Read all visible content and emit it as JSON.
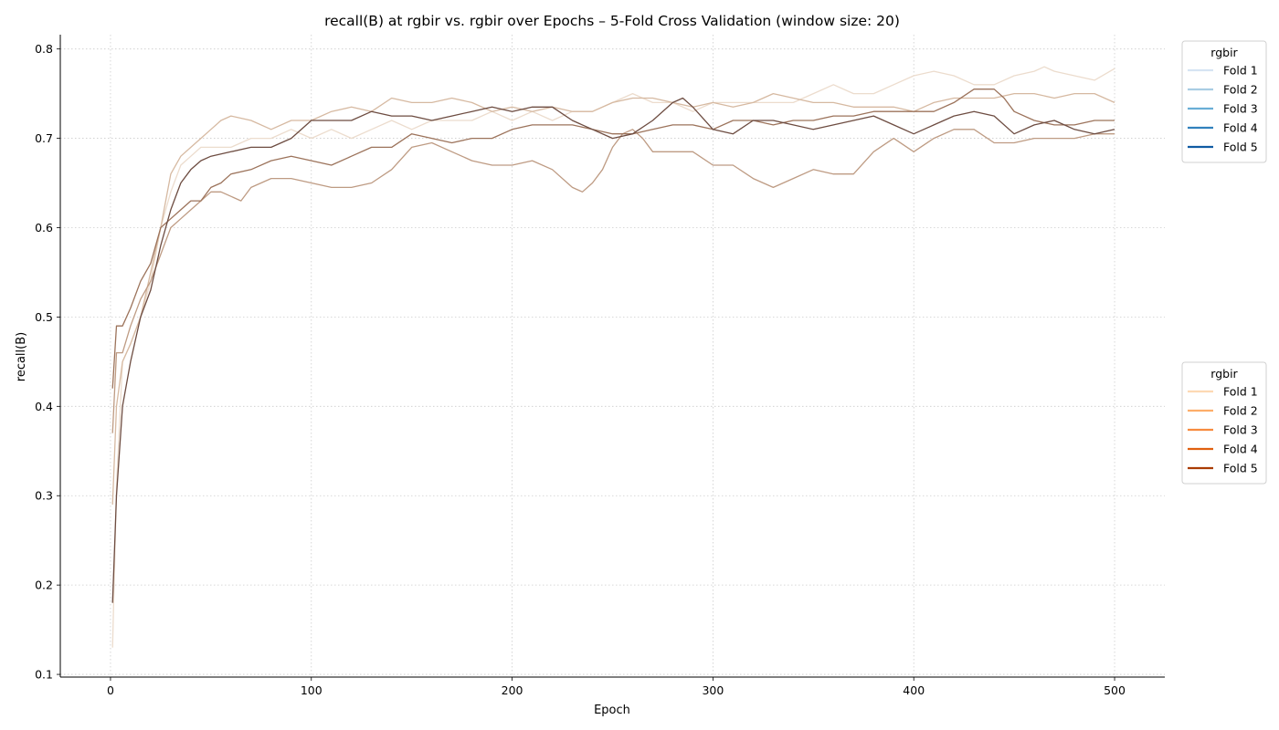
{
  "chart_data": {
    "type": "line",
    "title": "recall(B) at rgbir vs. rgbir over Epochs – 5-Fold Cross Validation (window size: 20)",
    "xlabel": "Epoch",
    "ylabel": "recall(B)",
    "xlim": [
      -25,
      525
    ],
    "ylim": [
      0.097,
      0.816
    ],
    "xticks": [
      0,
      100,
      200,
      300,
      400,
      500
    ],
    "yticks": [
      0.1,
      0.2,
      0.3,
      0.4,
      0.5,
      0.6,
      0.7,
      0.8
    ],
    "grid": true,
    "legends": [
      {
        "title": "rgbir",
        "placement": "upper-right",
        "entries": [
          {
            "label": "Fold 1",
            "color": "#d6e4f3"
          },
          {
            "label": "Fold 2",
            "color": "#a9cde3"
          },
          {
            "label": "Fold 3",
            "color": "#6aaed6"
          },
          {
            "label": "Fold 4",
            "color": "#3181bd"
          },
          {
            "label": "Fold 5",
            "color": "#105ba3"
          }
        ]
      },
      {
        "title": "rgbir",
        "placement": "center-right",
        "entries": [
          {
            "label": "Fold 1",
            "color": "#fdd9b4"
          },
          {
            "label": "Fold 2",
            "color": "#fdae6a"
          },
          {
            "label": "Fold 3",
            "color": "#f78b3e"
          },
          {
            "label": "Fold 4",
            "color": "#e0600f"
          },
          {
            "label": "Fold 5",
            "color": "#a93c03"
          }
        ]
      }
    ],
    "series": [
      {
        "color": "#ecdccd",
        "points": [
          [
            1,
            0.13
          ],
          [
            3,
            0.31
          ],
          [
            6,
            0.45
          ],
          [
            10,
            0.47
          ],
          [
            15,
            0.5
          ],
          [
            20,
            0.54
          ],
          [
            25,
            0.6
          ],
          [
            30,
            0.64
          ],
          [
            35,
            0.67
          ],
          [
            40,
            0.68
          ],
          [
            45,
            0.69
          ],
          [
            50,
            0.69
          ],
          [
            60,
            0.69
          ],
          [
            70,
            0.7
          ],
          [
            80,
            0.7
          ],
          [
            90,
            0.71
          ],
          [
            100,
            0.7
          ],
          [
            110,
            0.71
          ],
          [
            120,
            0.7
          ],
          [
            130,
            0.71
          ],
          [
            140,
            0.72
          ],
          [
            150,
            0.71
          ],
          [
            160,
            0.72
          ],
          [
            170,
            0.72
          ],
          [
            180,
            0.72
          ],
          [
            190,
            0.73
          ],
          [
            200,
            0.72
          ],
          [
            210,
            0.73
          ],
          [
            220,
            0.72
          ],
          [
            230,
            0.73
          ],
          [
            240,
            0.73
          ],
          [
            250,
            0.74
          ],
          [
            260,
            0.75
          ],
          [
            270,
            0.74
          ],
          [
            280,
            0.74
          ],
          [
            290,
            0.73
          ],
          [
            300,
            0.74
          ],
          [
            310,
            0.74
          ],
          [
            320,
            0.74
          ],
          [
            330,
            0.74
          ],
          [
            340,
            0.74
          ],
          [
            350,
            0.75
          ],
          [
            360,
            0.76
          ],
          [
            370,
            0.75
          ],
          [
            380,
            0.75
          ],
          [
            390,
            0.76
          ],
          [
            400,
            0.77
          ],
          [
            410,
            0.775
          ],
          [
            420,
            0.77
          ],
          [
            430,
            0.76
          ],
          [
            440,
            0.76
          ],
          [
            450,
            0.77
          ],
          [
            460,
            0.775
          ],
          [
            465,
            0.78
          ],
          [
            470,
            0.775
          ],
          [
            480,
            0.77
          ],
          [
            490,
            0.765
          ],
          [
            500,
            0.778
          ]
        ]
      },
      {
        "color": "#d6b9a1",
        "points": [
          [
            1,
            0.29
          ],
          [
            3,
            0.4
          ],
          [
            6,
            0.45
          ],
          [
            10,
            0.47
          ],
          [
            15,
            0.5
          ],
          [
            20,
            0.55
          ],
          [
            25,
            0.6
          ],
          [
            30,
            0.66
          ],
          [
            35,
            0.68
          ],
          [
            40,
            0.69
          ],
          [
            45,
            0.7
          ],
          [
            50,
            0.71
          ],
          [
            55,
            0.72
          ],
          [
            60,
            0.725
          ],
          [
            70,
            0.72
          ],
          [
            80,
            0.71
          ],
          [
            90,
            0.72
          ],
          [
            100,
            0.72
          ],
          [
            110,
            0.73
          ],
          [
            120,
            0.735
          ],
          [
            130,
            0.73
          ],
          [
            140,
            0.745
          ],
          [
            150,
            0.74
          ],
          [
            160,
            0.74
          ],
          [
            170,
            0.745
          ],
          [
            180,
            0.74
          ],
          [
            190,
            0.73
          ],
          [
            200,
            0.735
          ],
          [
            210,
            0.73
          ],
          [
            220,
            0.735
          ],
          [
            230,
            0.73
          ],
          [
            240,
            0.73
          ],
          [
            250,
            0.74
          ],
          [
            260,
            0.745
          ],
          [
            270,
            0.745
          ],
          [
            280,
            0.74
          ],
          [
            290,
            0.735
          ],
          [
            300,
            0.74
          ],
          [
            310,
            0.735
          ],
          [
            320,
            0.74
          ],
          [
            330,
            0.75
          ],
          [
            340,
            0.745
          ],
          [
            350,
            0.74
          ],
          [
            360,
            0.74
          ],
          [
            370,
            0.735
          ],
          [
            380,
            0.735
          ],
          [
            390,
            0.735
          ],
          [
            400,
            0.73
          ],
          [
            410,
            0.74
          ],
          [
            420,
            0.745
          ],
          [
            430,
            0.745
          ],
          [
            440,
            0.745
          ],
          [
            450,
            0.75
          ],
          [
            460,
            0.75
          ],
          [
            470,
            0.745
          ],
          [
            480,
            0.75
          ],
          [
            490,
            0.75
          ],
          [
            500,
            0.74
          ]
        ]
      },
      {
        "color": "#be9b83",
        "points": [
          [
            1,
            0.37
          ],
          [
            3,
            0.46
          ],
          [
            6,
            0.46
          ],
          [
            10,
            0.49
          ],
          [
            15,
            0.52
          ],
          [
            20,
            0.54
          ],
          [
            25,
            0.57
          ],
          [
            30,
            0.6
          ],
          [
            35,
            0.61
          ],
          [
            40,
            0.62
          ],
          [
            45,
            0.63
          ],
          [
            50,
            0.64
          ],
          [
            55,
            0.64
          ],
          [
            60,
            0.635
          ],
          [
            65,
            0.63
          ],
          [
            70,
            0.645
          ],
          [
            80,
            0.655
          ],
          [
            90,
            0.655
          ],
          [
            100,
            0.65
          ],
          [
            110,
            0.645
          ],
          [
            120,
            0.645
          ],
          [
            130,
            0.65
          ],
          [
            140,
            0.665
          ],
          [
            150,
            0.69
          ],
          [
            160,
            0.695
          ],
          [
            170,
            0.685
          ],
          [
            180,
            0.675
          ],
          [
            190,
            0.67
          ],
          [
            200,
            0.67
          ],
          [
            210,
            0.675
          ],
          [
            220,
            0.665
          ],
          [
            230,
            0.645
          ],
          [
            235,
            0.64
          ],
          [
            240,
            0.65
          ],
          [
            245,
            0.665
          ],
          [
            250,
            0.69
          ],
          [
            255,
            0.705
          ],
          [
            260,
            0.71
          ],
          [
            265,
            0.7
          ],
          [
            270,
            0.685
          ],
          [
            280,
            0.685
          ],
          [
            290,
            0.685
          ],
          [
            300,
            0.67
          ],
          [
            310,
            0.67
          ],
          [
            320,
            0.655
          ],
          [
            330,
            0.645
          ],
          [
            340,
            0.655
          ],
          [
            350,
            0.665
          ],
          [
            360,
            0.66
          ],
          [
            370,
            0.66
          ],
          [
            380,
            0.685
          ],
          [
            390,
            0.7
          ],
          [
            400,
            0.685
          ],
          [
            410,
            0.7
          ],
          [
            420,
            0.71
          ],
          [
            430,
            0.71
          ],
          [
            440,
            0.695
          ],
          [
            450,
            0.695
          ],
          [
            460,
            0.7
          ],
          [
            470,
            0.7
          ],
          [
            480,
            0.7
          ],
          [
            490,
            0.705
          ],
          [
            500,
            0.705
          ]
        ]
      },
      {
        "color": "#9c735b",
        "points": [
          [
            1,
            0.42
          ],
          [
            3,
            0.49
          ],
          [
            6,
            0.49
          ],
          [
            10,
            0.51
          ],
          [
            15,
            0.54
          ],
          [
            20,
            0.56
          ],
          [
            25,
            0.6
          ],
          [
            30,
            0.61
          ],
          [
            35,
            0.62
          ],
          [
            40,
            0.63
          ],
          [
            45,
            0.63
          ],
          [
            50,
            0.645
          ],
          [
            55,
            0.65
          ],
          [
            60,
            0.66
          ],
          [
            70,
            0.665
          ],
          [
            80,
            0.675
          ],
          [
            90,
            0.68
          ],
          [
            100,
            0.675
          ],
          [
            110,
            0.67
          ],
          [
            120,
            0.68
          ],
          [
            130,
            0.69
          ],
          [
            140,
            0.69
          ],
          [
            150,
            0.705
          ],
          [
            160,
            0.7
          ],
          [
            170,
            0.695
          ],
          [
            180,
            0.7
          ],
          [
            190,
            0.7
          ],
          [
            200,
            0.71
          ],
          [
            210,
            0.715
          ],
          [
            220,
            0.715
          ],
          [
            230,
            0.715
          ],
          [
            240,
            0.71
          ],
          [
            250,
            0.705
          ],
          [
            260,
            0.705
          ],
          [
            270,
            0.71
          ],
          [
            280,
            0.715
          ],
          [
            290,
            0.715
          ],
          [
            300,
            0.71
          ],
          [
            310,
            0.72
          ],
          [
            320,
            0.72
          ],
          [
            330,
            0.715
          ],
          [
            340,
            0.72
          ],
          [
            350,
            0.72
          ],
          [
            360,
            0.725
          ],
          [
            370,
            0.725
          ],
          [
            380,
            0.73
          ],
          [
            390,
            0.73
          ],
          [
            400,
            0.73
          ],
          [
            410,
            0.73
          ],
          [
            420,
            0.74
          ],
          [
            430,
            0.755
          ],
          [
            440,
            0.755
          ],
          [
            445,
            0.745
          ],
          [
            450,
            0.73
          ],
          [
            460,
            0.72
          ],
          [
            470,
            0.715
          ],
          [
            480,
            0.715
          ],
          [
            490,
            0.72
          ],
          [
            500,
            0.72
          ]
        ]
      },
      {
        "color": "#6d4c41",
        "points": [
          [
            1,
            0.18
          ],
          [
            3,
            0.3
          ],
          [
            6,
            0.4
          ],
          [
            10,
            0.45
          ],
          [
            15,
            0.5
          ],
          [
            20,
            0.53
          ],
          [
            25,
            0.58
          ],
          [
            30,
            0.62
          ],
          [
            35,
            0.65
          ],
          [
            40,
            0.665
          ],
          [
            45,
            0.675
          ],
          [
            50,
            0.68
          ],
          [
            60,
            0.685
          ],
          [
            70,
            0.69
          ],
          [
            80,
            0.69
          ],
          [
            90,
            0.7
          ],
          [
            100,
            0.72
          ],
          [
            110,
            0.72
          ],
          [
            120,
            0.72
          ],
          [
            130,
            0.73
          ],
          [
            140,
            0.725
          ],
          [
            150,
            0.725
          ],
          [
            160,
            0.72
          ],
          [
            170,
            0.725
          ],
          [
            180,
            0.73
          ],
          [
            190,
            0.735
          ],
          [
            200,
            0.73
          ],
          [
            210,
            0.735
          ],
          [
            220,
            0.735
          ],
          [
            230,
            0.72
          ],
          [
            240,
            0.71
          ],
          [
            250,
            0.7
          ],
          [
            260,
            0.705
          ],
          [
            270,
            0.72
          ],
          [
            280,
            0.74
          ],
          [
            285,
            0.745
          ],
          [
            290,
            0.735
          ],
          [
            300,
            0.71
          ],
          [
            310,
            0.705
          ],
          [
            320,
            0.72
          ],
          [
            330,
            0.72
          ],
          [
            340,
            0.715
          ],
          [
            350,
            0.71
          ],
          [
            360,
            0.715
          ],
          [
            370,
            0.72
          ],
          [
            380,
            0.725
          ],
          [
            390,
            0.715
          ],
          [
            400,
            0.705
          ],
          [
            410,
            0.715
          ],
          [
            420,
            0.725
          ],
          [
            430,
            0.73
          ],
          [
            440,
            0.725
          ],
          [
            450,
            0.705
          ],
          [
            460,
            0.715
          ],
          [
            470,
            0.72
          ],
          [
            480,
            0.71
          ],
          [
            490,
            0.705
          ],
          [
            500,
            0.71
          ]
        ]
      }
    ]
  }
}
